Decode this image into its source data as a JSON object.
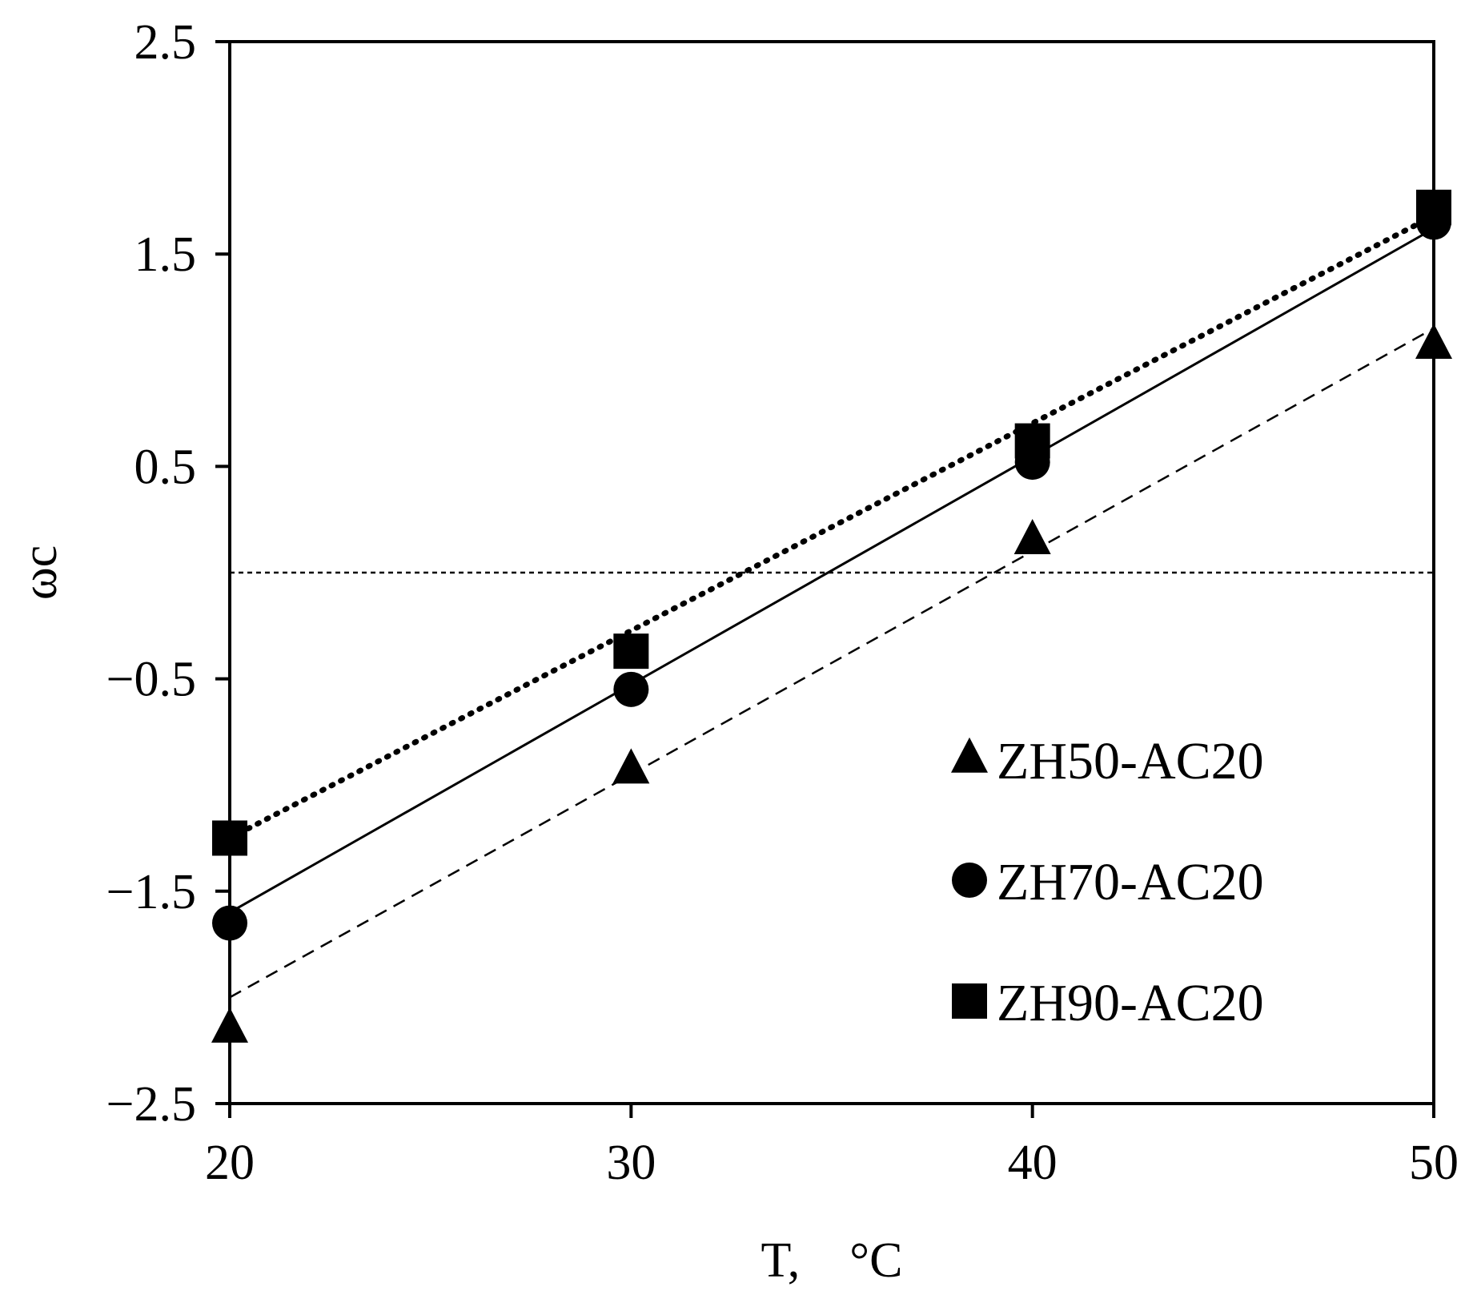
{
  "chart_data": {
    "type": "scatter",
    "xlabel": "T,    °C",
    "ylabel": "ωc",
    "xlim": [
      20,
      50
    ],
    "ylim": [
      -2.5,
      2.5
    ],
    "x_ticks": [
      {
        "value": 20,
        "label": "20"
      },
      {
        "value": 30,
        "label": "30"
      },
      {
        "value": 40,
        "label": "40"
      },
      {
        "value": 50,
        "label": "50"
      }
    ],
    "y_ticks": [
      {
        "value": 2.5,
        "label": "2.5"
      },
      {
        "value": 1.5,
        "label": "1.5"
      },
      {
        "value": 0.5,
        "label": "0.5"
      },
      {
        "value": -0.5,
        "label": "−0.5"
      },
      {
        "value": -1.5,
        "label": "−1.5"
      },
      {
        "value": -2.5,
        "label": "−2.5"
      }
    ],
    "reference_line": {
      "y": 0,
      "style": "dotted"
    },
    "grid": false,
    "legend_position": "bottom-right",
    "series": [
      {
        "name": "ZH50-AC20",
        "marker": "triangle",
        "line_style": "dashed",
        "x": [
          20,
          30,
          40,
          50
        ],
        "y": [
          -2.15,
          -0.93,
          0.15,
          1.07
        ],
        "fit_line": {
          "x": [
            20,
            50
          ],
          "y": [
            -2.0,
            1.15
          ]
        }
      },
      {
        "name": "ZH70-AC20",
        "marker": "circle",
        "line_style": "solid",
        "x": [
          20,
          30,
          40,
          50
        ],
        "y": [
          -1.65,
          -0.55,
          0.52,
          1.65
        ],
        "fit_line": {
          "x": [
            20,
            50
          ],
          "y": [
            -1.6,
            1.62
          ]
        }
      },
      {
        "name": "ZH90-AC20",
        "marker": "square",
        "line_style": "dotted",
        "x": [
          20,
          30,
          40,
          50
        ],
        "y": [
          -1.25,
          -0.37,
          0.62,
          1.72
        ],
        "fit_line": {
          "x": [
            20,
            50
          ],
          "y": [
            -1.25,
            1.68
          ]
        }
      }
    ]
  }
}
